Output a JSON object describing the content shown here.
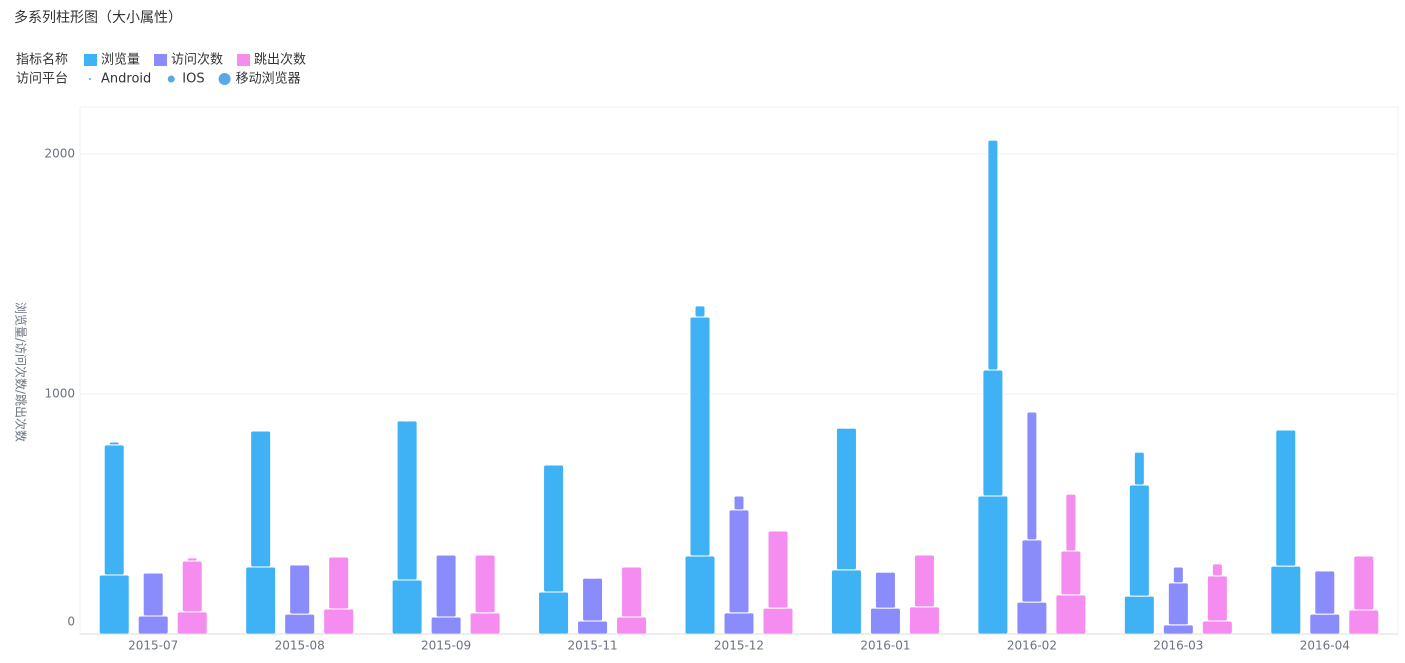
{
  "chart_data": {
    "type": "bar",
    "title": "多系列柱形图（大小属性）",
    "y_label": "浏览量/访问次数/跳出次数",
    "legend_metric_label": "指标名称",
    "legend_platform_label": "访问平台",
    "platforms": [
      "Android",
      "IOS",
      "移动浏览器"
    ],
    "platform_color": "#5aa9e6",
    "categories": [
      "2015-07",
      "2015-08",
      "2015-09",
      "2015-11",
      "2015-12",
      "2016-01",
      "2016-02",
      "2016-03",
      "2016-04"
    ],
    "series": [
      {
        "name": "浏览量",
        "color": "#3fb1f5",
        "values": [
          [
            12,
            4,
            3,
            3,
            46,
            3,
            958,
            137,
            3
          ],
          [
            542,
            567,
            663,
            529,
            996,
            591,
            525,
            463,
            567
          ],
          [
            246,
            279,
            225,
            175,
            325,
            267,
            575,
            158,
            283
          ]
        ]
      },
      {
        "name": "访问次数",
        "color": "#8b8cfc",
        "values": [
          [
            2,
            2,
            2,
            2,
            58,
            2,
            533,
            66,
            2
          ],
          [
            179,
            205,
            258,
            179,
            429,
            150,
            259,
            175,
            180
          ],
          [
            75,
            83,
            71,
            54,
            88,
            108,
            133,
            38,
            83
          ]
        ]
      },
      {
        "name": "跳出次数",
        "color": "#f58cf0",
        "values": [
          [
            13,
            2,
            2,
            2,
            3,
            2,
            237,
            50,
            2
          ],
          [
            212,
            217,
            241,
            208,
            321,
            216,
            183,
            188,
            225
          ],
          [
            92,
            104,
            88,
            71,
            108,
            113,
            163,
            54,
            100
          ]
        ]
      }
    ],
    "ylim": [
      0,
      2200
    ],
    "yticks": [
      0,
      1000,
      2000
    ],
    "grid": true
  }
}
